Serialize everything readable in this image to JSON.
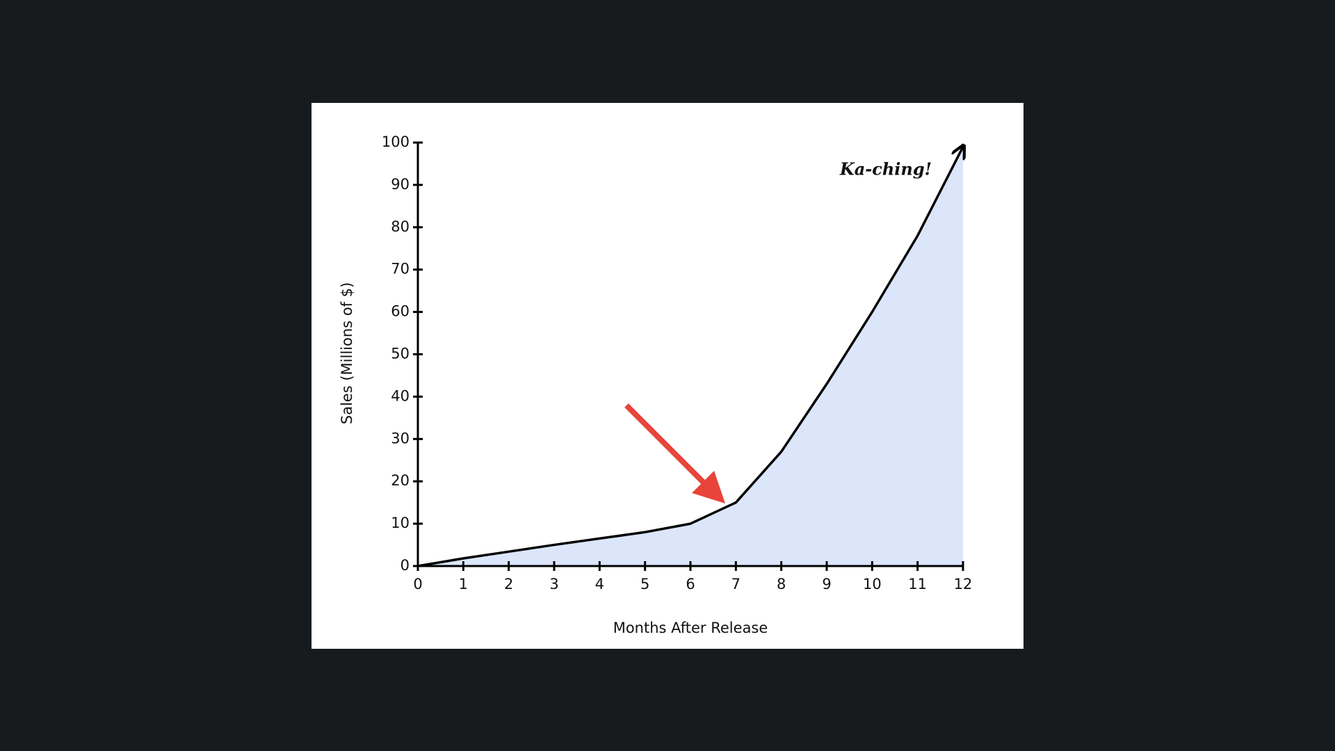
{
  "chart_data": {
    "type": "area",
    "x": [
      0,
      1,
      2,
      3,
      4,
      5,
      6,
      7,
      8,
      9,
      10,
      11,
      12
    ],
    "values": [
      0,
      1.8,
      3.4,
      5,
      6.5,
      8,
      10,
      15,
      27,
      43,
      60,
      78,
      99
    ],
    "color": "#000000",
    "fill": "#dbe6fb",
    "xlabel": "Months After Release",
    "ylabel": "Sales (Millions of $)",
    "annotation": "Ka-ching!",
    "xlim": [
      0,
      12
    ],
    "xticks": [
      0,
      1,
      2,
      3,
      4,
      5,
      6,
      7,
      8,
      9,
      10,
      11,
      12
    ],
    "ylim": [
      0,
      100
    ],
    "yticks": [
      0,
      10,
      20,
      30,
      40,
      50,
      60,
      70,
      80,
      90,
      100
    ]
  }
}
